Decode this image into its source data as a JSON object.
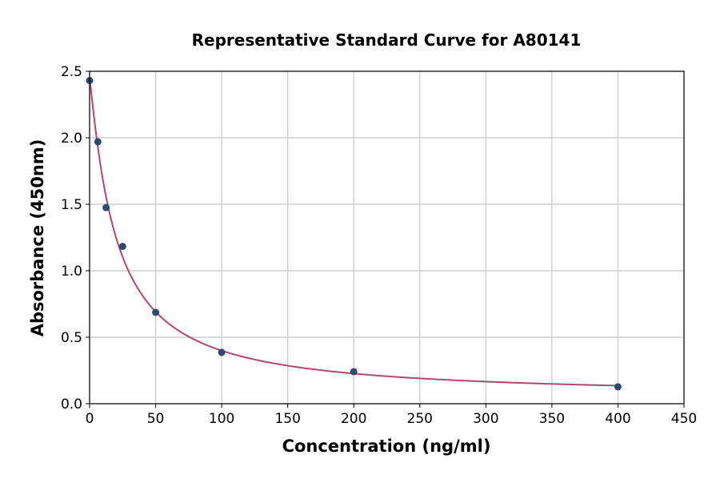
{
  "chart_data": {
    "type": "scatter",
    "title": "Representative Standard Curve for A80141",
    "xlabel": "Concentration (ng/ml)",
    "ylabel": "Absorbance (450nm)",
    "xlim": [
      0,
      450
    ],
    "ylim": [
      0,
      2.5
    ],
    "xticks": [
      0,
      50,
      100,
      150,
      200,
      250,
      300,
      350,
      400,
      450
    ],
    "yticks": [
      0.0,
      0.5,
      1.0,
      1.5,
      2.0,
      2.5
    ],
    "ytick_labels": [
      "0.0",
      "0.5",
      "1.0",
      "1.5",
      "2.0",
      "2.5"
    ],
    "grid": true,
    "points": {
      "x": [
        0,
        6.25,
        12.5,
        25,
        50,
        100,
        200,
        400
      ],
      "y": [
        2.43,
        1.97,
        1.475,
        1.183,
        0.687,
        0.386,
        0.241,
        0.127
      ]
    },
    "fit_curve": {
      "model": "4PL",
      "a": 2.45,
      "b": 1.1,
      "c": 20,
      "d": 0.05
    },
    "colors": {
      "points": "#2a4a6e",
      "curve": "#b5476a",
      "grid": "#c8c8c8"
    }
  }
}
